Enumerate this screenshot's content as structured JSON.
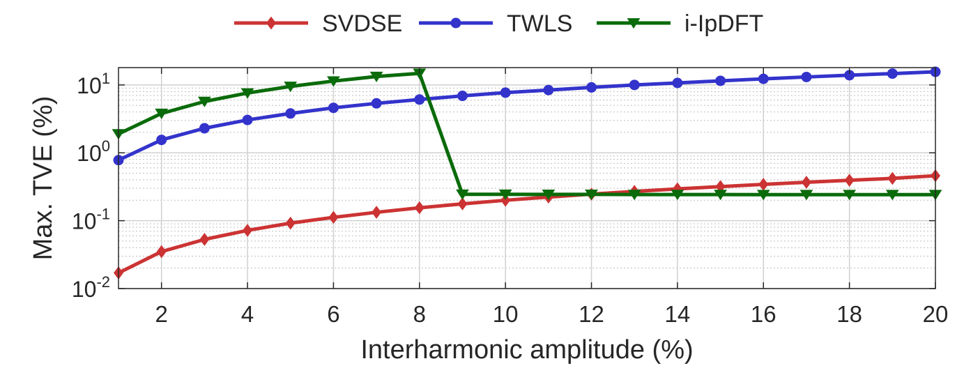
{
  "chart_data": {
    "type": "line",
    "title": "",
    "xlabel": "Interharmonic amplitude (%)",
    "ylabel": "Max. TVE (%)",
    "xlim": [
      1,
      20
    ],
    "ylim": [
      0.01,
      18
    ],
    "yscale": "log",
    "grid": true,
    "legend_position": "top-center",
    "x_ticks": [
      2,
      4,
      6,
      8,
      10,
      12,
      14,
      16,
      18,
      20
    ],
    "y_ticks": [
      {
        "value": 0.01,
        "base": "10",
        "exp": "-2"
      },
      {
        "value": 0.1,
        "base": "10",
        "exp": "-1"
      },
      {
        "value": 1,
        "base": "10",
        "exp": "0"
      },
      {
        "value": 10,
        "base": "10",
        "exp": "1"
      }
    ],
    "x": [
      1,
      2,
      3,
      4,
      5,
      6,
      7,
      8,
      9,
      10,
      11,
      12,
      13,
      14,
      15,
      16,
      17,
      18,
      19,
      20
    ],
    "series": [
      {
        "name": "SVDSE",
        "color": "#cc3333",
        "marker": "diamond",
        "values": [
          0.017,
          0.035,
          0.053,
          0.072,
          0.092,
          0.112,
          0.133,
          0.155,
          0.177,
          0.2,
          0.223,
          0.246,
          0.27,
          0.294,
          0.318,
          0.343,
          0.368,
          0.394,
          0.42,
          0.46
        ]
      },
      {
        "name": "TWLS",
        "color": "#3333cc",
        "marker": "circle",
        "values": [
          0.78,
          1.55,
          2.3,
          3.05,
          3.8,
          4.6,
          5.35,
          6.1,
          6.9,
          7.7,
          8.4,
          9.2,
          10.0,
          10.7,
          11.5,
          12.3,
          13.1,
          13.9,
          14.7,
          15.6
        ]
      },
      {
        "name": "i-IpDFT",
        "color": "#0a6b0a",
        "marker": "triangle-down",
        "values": [
          1.9,
          3.8,
          5.7,
          7.6,
          9.5,
          11.4,
          13.3,
          14.8,
          0.245,
          0.245,
          0.244,
          0.244,
          0.243,
          0.243,
          0.243,
          0.242,
          0.242,
          0.242,
          0.242,
          0.242
        ]
      }
    ]
  }
}
